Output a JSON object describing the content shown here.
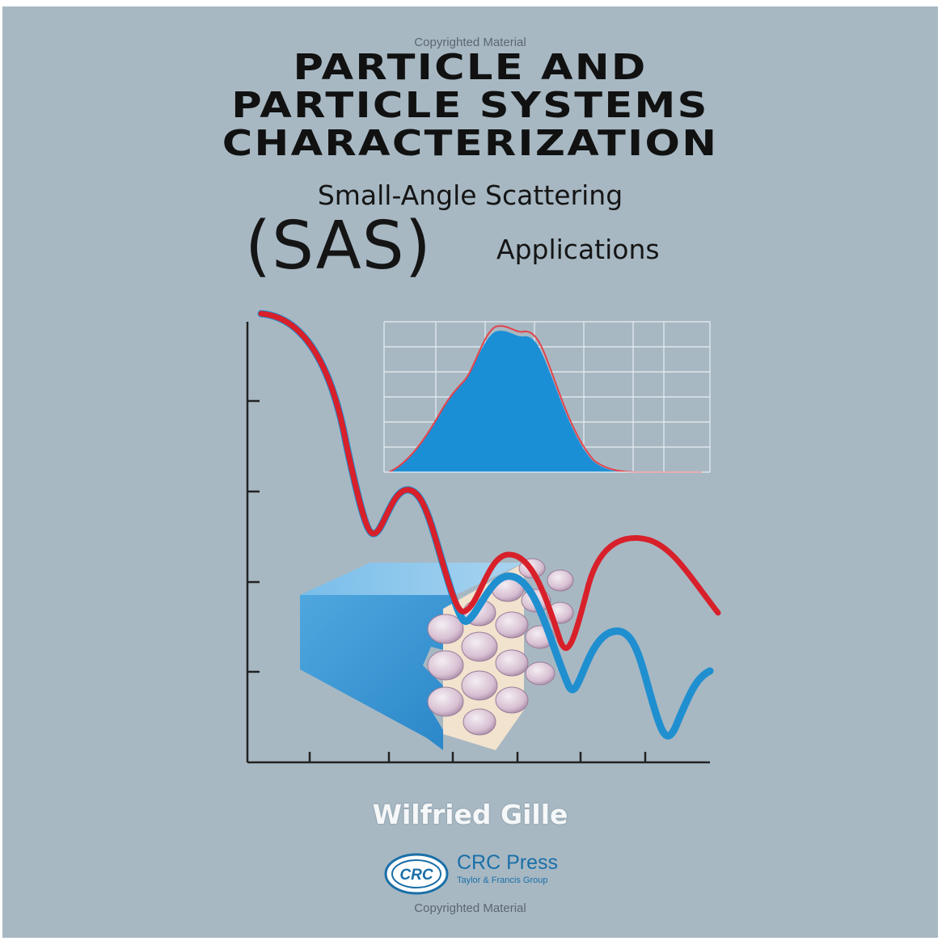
{
  "watermark": {
    "top": "Copyrighted Material",
    "bottom": "Copyrighted Material"
  },
  "cover": {
    "title_lines": [
      "PARTICLE AND",
      "PARTICLE SYSTEMS",
      "CHARACTERIZATION"
    ],
    "subtitle": "Small-Angle Scattering",
    "sas": "(SAS)",
    "subtitle2": "Applications",
    "author": "Wilfried Gille"
  },
  "publisher": {
    "logo_text": "CRC",
    "name": "CRC Press",
    "group": "Taylor & Francis Group"
  },
  "colors": {
    "background": "#a7b8c3",
    "red_curve": "#d8202a",
    "blue_curve": "#1f8fd0",
    "blue_fill": "#1b8fd6",
    "publisher_blue": "#1a6fa8"
  }
}
